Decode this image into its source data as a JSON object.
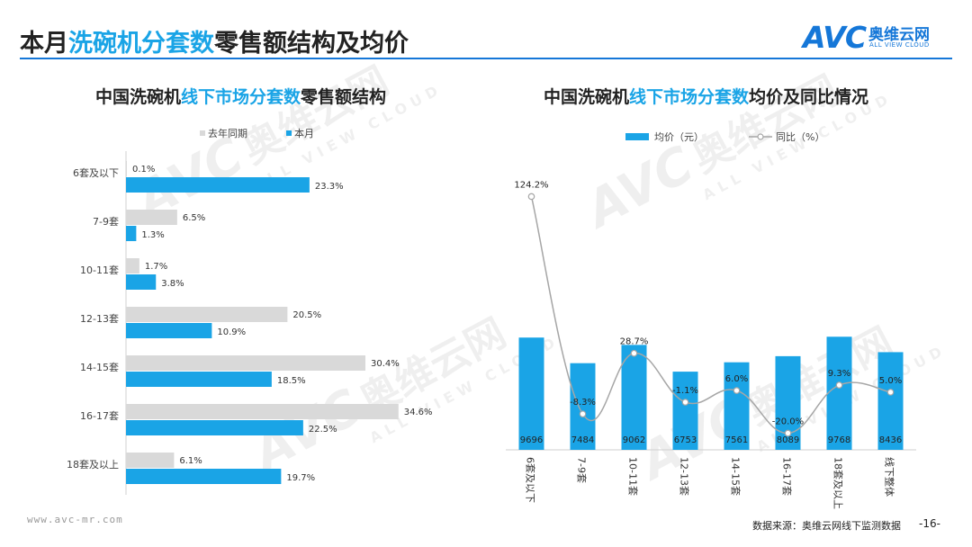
{
  "header": {
    "title_parts": [
      "本月",
      "洗碗机分套数",
      "零售额结构及均价"
    ],
    "logo_mark": "AVC",
    "logo_cn": "奥维云网",
    "logo_en": "ALL VIEW CLOUD",
    "brand_color": "#1577d8"
  },
  "left_title_parts": [
    "中国洗碗机",
    "线下市场分套数",
    "零售额结构"
  ],
  "right_title_parts": [
    "中国洗碗机",
    "线下市场分套数",
    "均价及同比情况"
  ],
  "watermark": {
    "mark": "AVC",
    "cn": "奥维云网",
    "en": "ALL VIEW CLOUD"
  },
  "footer": {
    "url": "www.avc-mr.com",
    "source": "数据来源：奥维云网线下监测数据",
    "page": "-16-"
  },
  "colors": {
    "accent": "#1aa4e6",
    "grey": "#d9d9d9",
    "line": "#a6a6a6"
  },
  "chart_data": [
    {
      "type": "bar",
      "orientation": "horizontal",
      "title": "中国洗碗机线下市场分套数零售额结构",
      "categories": [
        "6套及以下",
        "7-9套",
        "10-11套",
        "12-13套",
        "14-15套",
        "16-17套",
        "18套及以上"
      ],
      "series": [
        {
          "name": "去年同期",
          "values": [
            0.1,
            6.5,
            1.7,
            20.5,
            30.4,
            34.6,
            6.1
          ],
          "labels": [
            "0.1%",
            "6.5%",
            "1.7%",
            "20.5%",
            "30.4%",
            "34.6%",
            "6.1%"
          ],
          "color": "#d9d9d9"
        },
        {
          "name": "本月",
          "values": [
            23.3,
            1.3,
            3.8,
            10.9,
            18.5,
            22.5,
            19.7
          ],
          "labels": [
            "23.3%",
            "1.3%",
            "3.8%",
            "10.9%",
            "18.5%",
            "22.5%",
            "19.7%"
          ],
          "color": "#1aa4e6"
        }
      ],
      "legend": "top"
    },
    {
      "type": "bar",
      "title": "中国洗碗机线下市场分套数均价及同比情况",
      "categories": [
        "6套及以下",
        "7-9套",
        "10-11套",
        "12-13套",
        "14-15套",
        "16-17套",
        "18套及以上",
        "线下整体"
      ],
      "series": [
        {
          "name": "均价（元）",
          "type": "bar",
          "values": [
            9696,
            7484,
            9062,
            6753,
            7561,
            8089,
            9768,
            8436
          ],
          "labels": [
            "9696",
            "7484",
            "9062",
            "6753",
            "7561",
            "8089",
            "9768",
            "8436"
          ],
          "color": "#1aa4e6"
        },
        {
          "name": "同比（%）",
          "type": "line",
          "values": [
            124.2,
            -8.3,
            28.7,
            -1.1,
            6.0,
            -20.0,
            9.3,
            5.0
          ],
          "labels": [
            "124.2%",
            "-8.3%",
            "28.7%",
            "-1.1%",
            "6.0%",
            "-20.0%",
            "9.3%",
            "5.0%"
          ],
          "color": "#a6a6a6"
        }
      ],
      "legend": "top"
    }
  ]
}
